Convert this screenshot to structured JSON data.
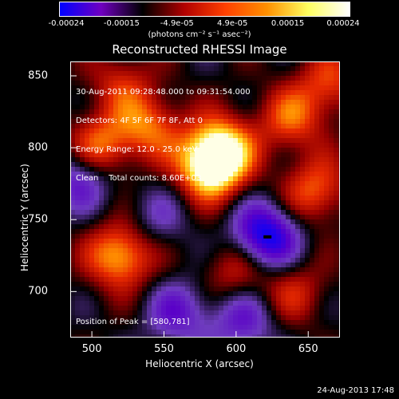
{
  "colorbar": {
    "ticks": [
      "-0.00024",
      "-0.00015",
      "-4.9e-05",
      "4.9e-05",
      "0.00015",
      "0.00024"
    ],
    "units": "(photons cm⁻² s⁻¹ asec⁻²)",
    "colors": [
      "#0000ff",
      "#7000c0",
      "#000000",
      "#b00000",
      "#ff4000",
      "#ff9000",
      "#ffff60",
      "#ffffff"
    ]
  },
  "chart_data": {
    "type": "heatmap",
    "title": "Reconstructed RHESSI Image",
    "xlabel": "Heliocentric X (arcsec)",
    "ylabel": "Heliocentric Y (arcsec)",
    "xlim": [
      485,
      672
    ],
    "ylim": [
      668,
      860
    ],
    "xticks": [
      "500",
      "550",
      "600",
      "650"
    ],
    "yticks": [
      "700",
      "750",
      "800",
      "850"
    ],
    "annotations": [
      "30-Aug-2011 09:28:48.000 to 09:31:54.000",
      "Detectors: 4F 5F 6F 7F 8F, Att 0",
      "Energy Range: 12.0 - 25.0 keV",
      "Clean    Total counts: 8.60E+03"
    ],
    "peak_label": "Position of Peak = [580,781]",
    "peak": [
      580,
      781
    ],
    "sources": [
      {
        "x": 582,
        "y": 786,
        "level": 1.0
      },
      {
        "x": 590,
        "y": 800,
        "level": 0.8
      },
      {
        "x": 520,
        "y": 725,
        "level": 0.85
      },
      {
        "x": 505,
        "y": 800,
        "level": 0.7
      },
      {
        "x": 540,
        "y": 815,
        "level": 0.6
      },
      {
        "x": 638,
        "y": 820,
        "level": 0.55
      },
      {
        "x": 655,
        "y": 770,
        "level": 0.6
      },
      {
        "x": 600,
        "y": 715,
        "level": 0.45
      },
      {
        "x": 640,
        "y": 700,
        "level": 0.4
      },
      {
        "x": 665,
        "y": 845,
        "level": 0.5
      },
      {
        "x": 520,
        "y": 845,
        "level": 0.4
      },
      {
        "x": 620,
        "y": 738,
        "level": -1.0
      },
      {
        "x": 492,
        "y": 780,
        "level": -0.6
      },
      {
        "x": 560,
        "y": 685,
        "level": -0.5
      },
      {
        "x": 545,
        "y": 750,
        "level": -0.3
      },
      {
        "x": 605,
        "y": 680,
        "level": -0.5
      }
    ]
  },
  "footer": {
    "timestamp": "24-Aug-2013 17:48"
  }
}
